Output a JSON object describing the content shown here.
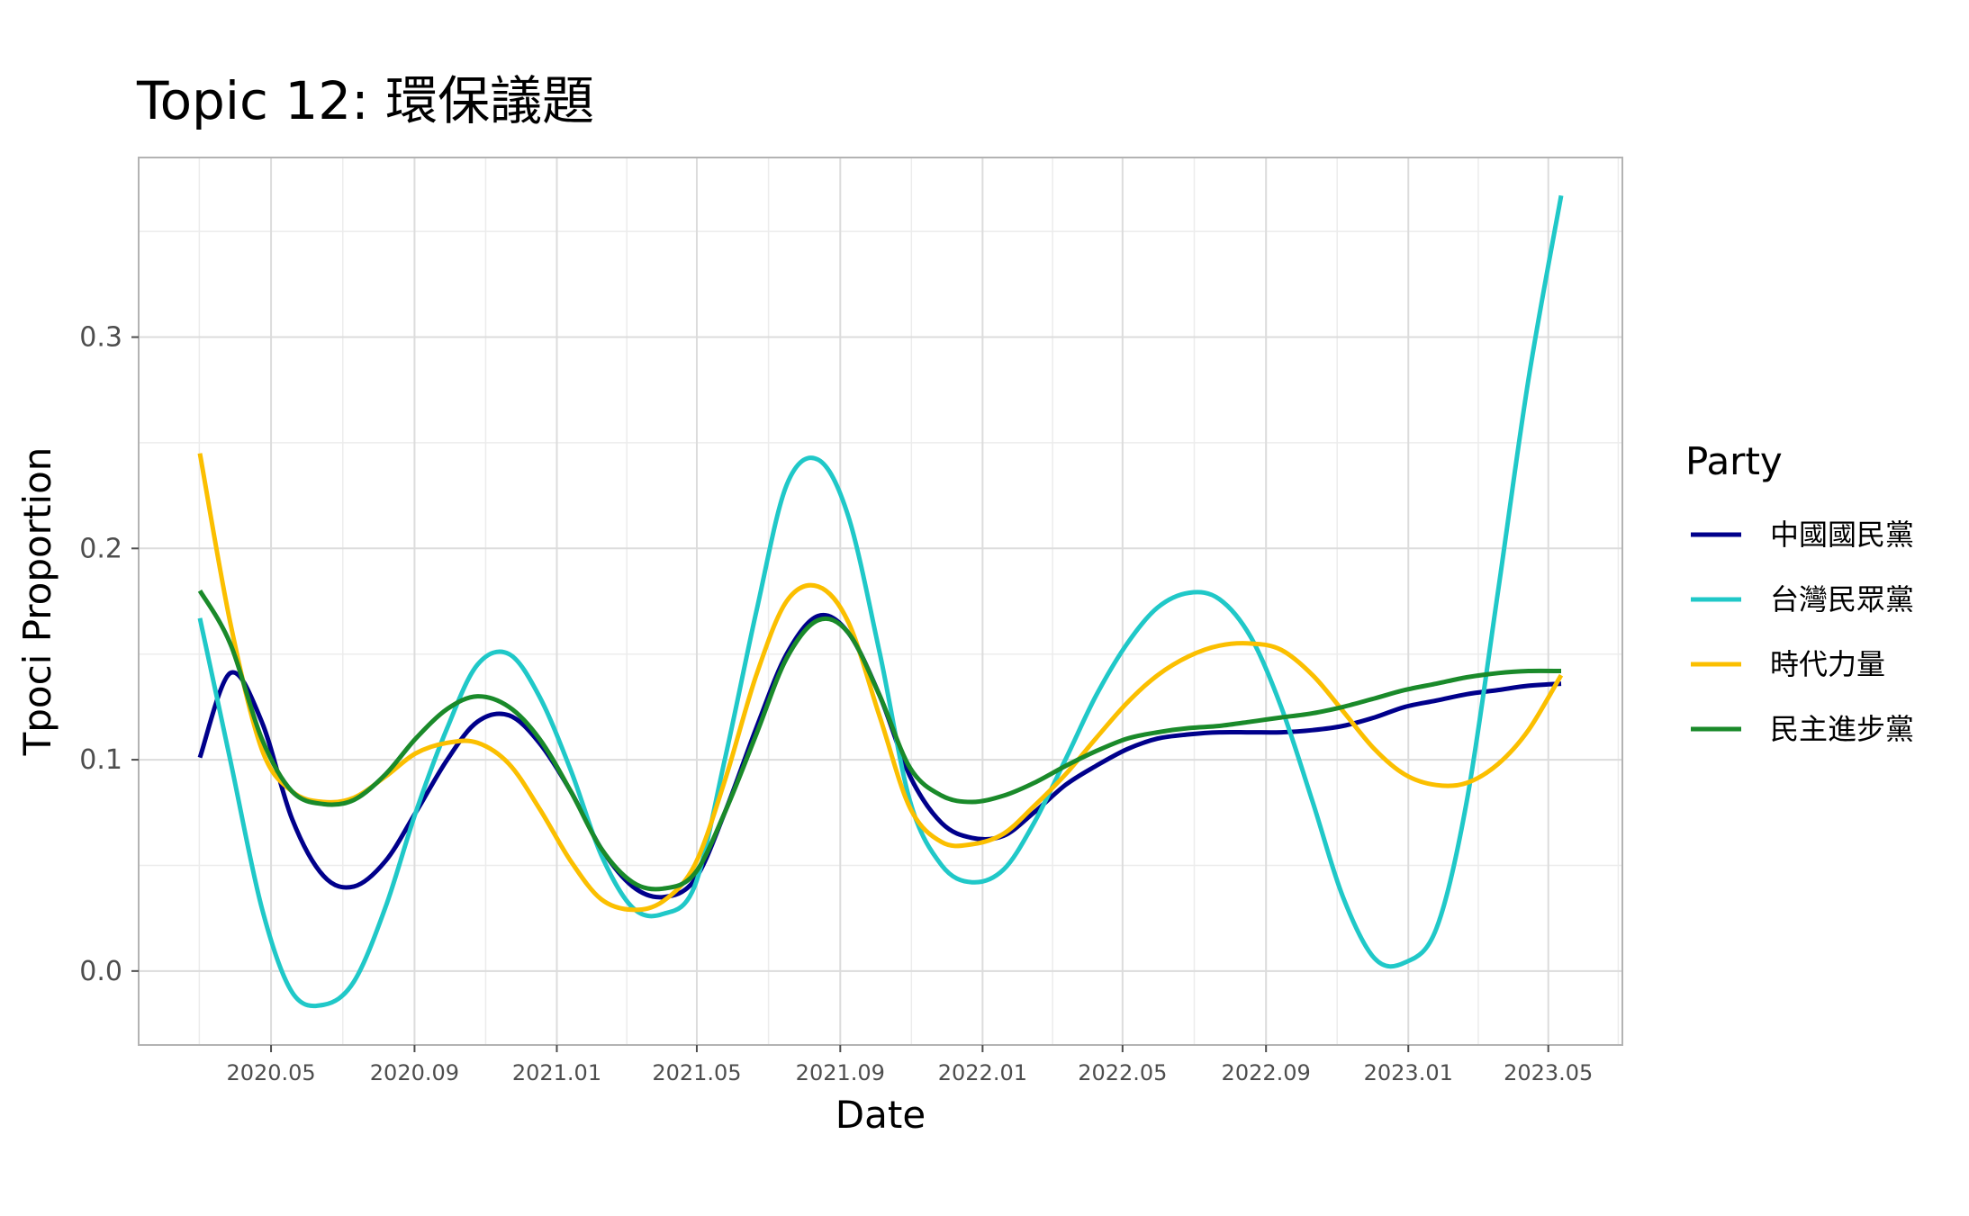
{
  "chart_data": {
    "type": "line",
    "title": "Topic 12: 環保議題",
    "xlabel": "Date",
    "ylabel": "Tpoci Proportion",
    "x_tick_labels": [
      "2020.05",
      "2020.09",
      "2021.01",
      "2021.05",
      "2021.09",
      "2022.01",
      "2022.05",
      "2022.09",
      "2023.01",
      "2023.05"
    ],
    "y_tick_labels": [
      "0.0",
      "0.1",
      "0.2",
      "0.3"
    ],
    "ylim": [
      -0.035,
      0.385
    ],
    "grid": true,
    "legend": {
      "title": "Party",
      "placement": "right"
    },
    "x": [
      "2020-03-01",
      "2020-03-27",
      "2020-04-23",
      "2020-05-19",
      "2020-06-15",
      "2020-07-11",
      "2020-08-07",
      "2020-09-02",
      "2020-09-29",
      "2020-10-25",
      "2020-11-21",
      "2020-12-17",
      "2021-01-13",
      "2021-02-08",
      "2021-03-07",
      "2021-04-02",
      "2021-04-29",
      "2021-05-25",
      "2021-06-21",
      "2021-07-17",
      "2021-08-13",
      "2021-09-08",
      "2021-10-05",
      "2021-10-31",
      "2021-11-27",
      "2021-12-23",
      "2022-01-19",
      "2022-02-14",
      "2022-03-13",
      "2022-04-08",
      "2022-05-05",
      "2022-05-31",
      "2022-06-27",
      "2022-07-23",
      "2022-08-19",
      "2022-09-14",
      "2022-10-11",
      "2022-11-06",
      "2022-12-03",
      "2022-12-29",
      "2023-01-25",
      "2023-02-20",
      "2023-03-19",
      "2023-04-14",
      "2023-05-12"
    ],
    "series": [
      {
        "name": "中國國民黨",
        "color": "#00008b",
        "values": [
          0.101,
          0.141,
          0.118,
          0.072,
          0.045,
          0.04,
          0.052,
          0.075,
          0.1,
          0.118,
          0.121,
          0.108,
          0.085,
          0.058,
          0.04,
          0.035,
          0.043,
          0.075,
          0.115,
          0.15,
          0.168,
          0.16,
          0.13,
          0.092,
          0.07,
          0.063,
          0.064,
          0.075,
          0.088,
          0.097,
          0.105,
          0.11,
          0.112,
          0.113,
          0.113,
          0.113,
          0.114,
          0.116,
          0.12,
          0.125,
          0.128,
          0.131,
          0.133,
          0.135,
          0.136
        ]
      },
      {
        "name": "台灣民眾黨",
        "color": "#20c8c8",
        "values": [
          0.167,
          0.1,
          0.03,
          -0.01,
          -0.016,
          -0.005,
          0.03,
          0.075,
          0.115,
          0.145,
          0.15,
          0.13,
          0.095,
          0.055,
          0.03,
          0.027,
          0.04,
          0.1,
          0.17,
          0.23,
          0.242,
          0.215,
          0.15,
          0.08,
          0.05,
          0.042,
          0.048,
          0.07,
          0.1,
          0.13,
          0.155,
          0.172,
          0.179,
          0.176,
          0.158,
          0.125,
          0.08,
          0.035,
          0.006,
          0.004,
          0.02,
          0.08,
          0.18,
          0.28,
          0.367
        ]
      },
      {
        "name": "時代力量",
        "color": "#fbbf00",
        "values": [
          0.245,
          0.165,
          0.105,
          0.085,
          0.08,
          0.082,
          0.092,
          0.103,
          0.108,
          0.108,
          0.098,
          0.077,
          0.052,
          0.034,
          0.029,
          0.033,
          0.05,
          0.09,
          0.14,
          0.175,
          0.182,
          0.165,
          0.12,
          0.077,
          0.061,
          0.06,
          0.065,
          0.078,
          0.093,
          0.11,
          0.127,
          0.14,
          0.149,
          0.154,
          0.155,
          0.152,
          0.14,
          0.123,
          0.105,
          0.093,
          0.088,
          0.089,
          0.098,
          0.114,
          0.14
        ]
      },
      {
        "name": "民主進步黨",
        "color": "#1a8a2a",
        "values": [
          0.18,
          0.155,
          0.11,
          0.085,
          0.079,
          0.081,
          0.093,
          0.11,
          0.124,
          0.13,
          0.125,
          0.11,
          0.085,
          0.058,
          0.042,
          0.039,
          0.046,
          0.075,
          0.112,
          0.148,
          0.166,
          0.16,
          0.13,
          0.096,
          0.083,
          0.08,
          0.083,
          0.089,
          0.097,
          0.104,
          0.11,
          0.113,
          0.115,
          0.116,
          0.118,
          0.12,
          0.122,
          0.125,
          0.129,
          0.133,
          0.136,
          0.139,
          0.141,
          0.142,
          0.142
        ]
      }
    ]
  }
}
